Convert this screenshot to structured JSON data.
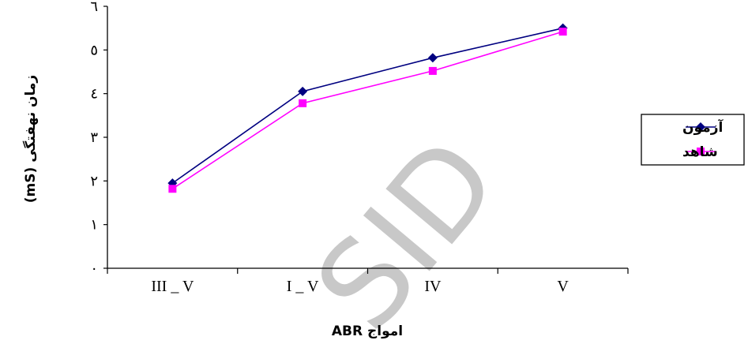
{
  "watermark": "SID",
  "chart_data": {
    "type": "line",
    "title": "",
    "xlabel": "امواج ABR",
    "ylabel": "زمان نهفتگی (mS)",
    "categories": [
      "III _ V",
      "I _ V",
      "IV",
      "V"
    ],
    "y_tick_labels": [
      "۰",
      "۱",
      "۲",
      "۳",
      "٤",
      "٥",
      "٦"
    ],
    "ylim": [
      0,
      6
    ],
    "grid": false,
    "legend_position": "right",
    "series": [
      {
        "name": "آزمون",
        "values": [
          1.95,
          4.05,
          4.82,
          5.5
        ],
        "color": "#000080",
        "marker": "diamond"
      },
      {
        "name": "شاهد",
        "values": [
          1.82,
          3.78,
          4.52,
          5.42
        ],
        "color": "#ff00ff",
        "marker": "square"
      }
    ]
  }
}
